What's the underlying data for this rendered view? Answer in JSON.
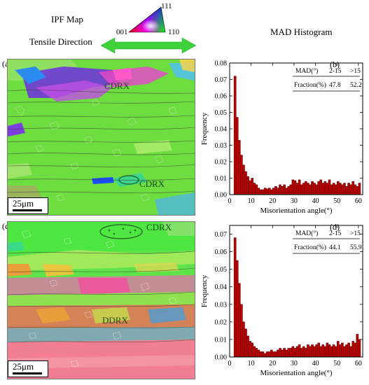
{
  "header": {
    "ipf_title": "IPF Map",
    "tensile_title": "Tensile Direction",
    "mad_title": "MAD  Histogram",
    "tri_111": "111",
    "tri_001": "001",
    "tri_110": "110"
  },
  "panels": {
    "a": {
      "label": "(a)",
      "annotations": [
        "CDRX",
        "CDRX"
      ],
      "scale": "25μm"
    },
    "c": {
      "label": "(c)",
      "annotations": [
        "CDRX",
        "DDRX"
      ],
      "scale": "25μm"
    }
  },
  "chart_data": [
    {
      "type": "bar",
      "panel": "(b)",
      "xlabel": "Misorientation angle(°)",
      "ylabel": "Frequency",
      "xlim": [
        0,
        62
      ],
      "ylim": [
        0,
        0.08
      ],
      "xticks": [
        0,
        10,
        20,
        30,
        40,
        50,
        60
      ],
      "yticks": [
        0.0,
        0.01,
        0.02,
        0.03,
        0.04,
        0.05,
        0.06,
        0.07,
        0.08
      ],
      "bar_color": "#c00000",
      "table": {
        "header": [
          "MAD(°)",
          "2-15",
          ">15"
        ],
        "row": [
          "Fraction(%)",
          "47.8",
          "52.2"
        ]
      },
      "x": [
        2.5,
        3.5,
        4.5,
        5.5,
        6.5,
        7.5,
        8.5,
        9.5,
        10.5,
        11.5,
        12.5,
        13.5,
        14.5,
        15.5,
        16.5,
        17.5,
        18.5,
        19.5,
        20.5,
        21.5,
        22.5,
        23.5,
        24.5,
        25.5,
        26.5,
        27.5,
        28.5,
        29.5,
        30.5,
        31.5,
        32.5,
        33.5,
        34.5,
        35.5,
        36.5,
        37.5,
        38.5,
        39.5,
        40.5,
        41.5,
        42.5,
        43.5,
        44.5,
        45.5,
        46.5,
        47.5,
        48.5,
        49.5,
        50.5,
        51.5,
        52.5,
        53.5,
        54.5,
        55.5,
        56.5,
        57.5,
        58.5,
        59.5,
        60.5
      ],
      "values": [
        0.072,
        0.047,
        0.033,
        0.024,
        0.018,
        0.014,
        0.011,
        0.0085,
        0.01,
        0.007,
        0.006,
        0.004,
        0.003,
        0.003,
        0.004,
        0.0035,
        0.004,
        0.003,
        0.004,
        0.005,
        0.004,
        0.006,
        0.005,
        0.006,
        0.004,
        0.005,
        0.006,
        0.009,
        0.0085,
        0.007,
        0.009,
        0.006,
        0.007,
        0.008,
        0.007,
        0.006,
        0.008,
        0.007,
        0.006,
        0.008,
        0.009,
        0.007,
        0.008,
        0.007,
        0.009,
        0.006,
        0.007,
        0.006,
        0.008,
        0.007,
        0.006,
        0.007,
        0.005,
        0.007,
        0.006,
        0.008,
        0.006,
        0.005,
        0.007
      ]
    },
    {
      "type": "bar",
      "panel": "(d)",
      "xlabel": "Misorientation angle(°)",
      "ylabel": "Frequency",
      "xlim": [
        0,
        62
      ],
      "ylim": [
        0,
        0.075
      ],
      "xticks": [
        0,
        10,
        20,
        30,
        40,
        50,
        60
      ],
      "yticks": [
        0.0,
        0.01,
        0.02,
        0.03,
        0.04,
        0.05,
        0.06,
        0.07
      ],
      "bar_color": "#c00000",
      "table": {
        "header": [
          "MAD(°)",
          "2-15",
          ">15"
        ],
        "row": [
          "Fraction(%)",
          "44.1",
          "55.9"
        ]
      },
      "x": [
        2.5,
        3.5,
        4.5,
        5.5,
        6.5,
        7.5,
        8.5,
        9.5,
        10.5,
        11.5,
        12.5,
        13.5,
        14.5,
        15.5,
        16.5,
        17.5,
        18.5,
        19.5,
        20.5,
        21.5,
        22.5,
        23.5,
        24.5,
        25.5,
        26.5,
        27.5,
        28.5,
        29.5,
        30.5,
        31.5,
        32.5,
        33.5,
        34.5,
        35.5,
        36.5,
        37.5,
        38.5,
        39.5,
        40.5,
        41.5,
        42.5,
        43.5,
        44.5,
        45.5,
        46.5,
        47.5,
        48.5,
        49.5,
        50.5,
        51.5,
        52.5,
        53.5,
        54.5,
        55.5,
        56.5,
        57.5,
        58.5,
        59.5,
        60.5
      ],
      "values": [
        0.068,
        0.055,
        0.042,
        0.03,
        0.02,
        0.016,
        0.012,
        0.009,
        0.008,
        0.006,
        0.005,
        0.004,
        0.003,
        0.003,
        0.002,
        0.003,
        0.003,
        0.004,
        0.003,
        0.003,
        0.004,
        0.005,
        0.004,
        0.005,
        0.004,
        0.005,
        0.005,
        0.006,
        0.005,
        0.006,
        0.007,
        0.005,
        0.006,
        0.005,
        0.007,
        0.006,
        0.007,
        0.006,
        0.007,
        0.008,
        0.006,
        0.007,
        0.006,
        0.008,
        0.007,
        0.006,
        0.007,
        0.006,
        0.009,
        0.007,
        0.008,
        0.006,
        0.007,
        0.008,
        0.006,
        0.009,
        0.008,
        0.013,
        0.01
      ]
    }
  ]
}
